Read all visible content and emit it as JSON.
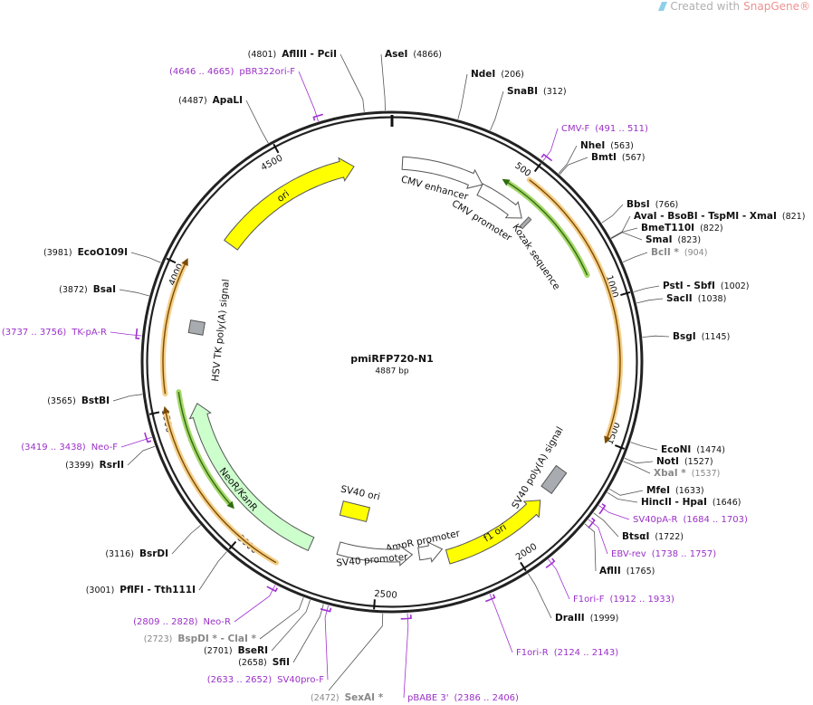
{
  "header": {
    "credit_text": "Created with",
    "brand": "SnapGene®"
  },
  "plasmid": {
    "name": "pmiRFP720-N1",
    "length": {
      "value": 4887,
      "label": "4887 bp"
    }
  },
  "ring_ticks": [
    500,
    1000,
    1500,
    2000,
    2500,
    3000,
    3500,
    4000,
    4500
  ],
  "features": [
    {
      "label": "CMV enhancer"
    },
    {
      "label": "CMV promoter"
    },
    {
      "label": "Kozak sequence"
    },
    {
      "label": "SV40 poly(A) signal"
    },
    {
      "label": "f1 ori"
    },
    {
      "label": "AmpR promoter"
    },
    {
      "label": "SV40 promoter"
    },
    {
      "label": "SV40 ori"
    },
    {
      "label": "NeoR/KanR"
    },
    {
      "label": "HSV TK poly(A) signal"
    },
    {
      "label": "ori"
    }
  ],
  "sites": [
    {
      "name": "AflIII - PciI",
      "position": {
        "value": 4801,
        "label": "(4801)"
      }
    },
    {
      "name": "AseI",
      "position": {
        "value": 4866,
        "label": "(4866)"
      }
    },
    {
      "name": "NdeI",
      "position": {
        "value": 206,
        "label": "(206)"
      }
    },
    {
      "name": "SnaBI",
      "position": {
        "value": 312,
        "label": "(312)"
      }
    },
    {
      "name": "NheI",
      "position": {
        "value": 563,
        "label": "(563)"
      }
    },
    {
      "name": "BmtI",
      "position": {
        "value": 567,
        "label": "(567)"
      }
    },
    {
      "name": "BbsI",
      "position": {
        "value": 766,
        "label": "(766)"
      }
    },
    {
      "name": "AvaI - BsoBI - TspMI - XmaI",
      "position": {
        "value": 821,
        "label": "(821)"
      }
    },
    {
      "name": "BmeT110I",
      "position": {
        "value": 822,
        "label": "(822)"
      }
    },
    {
      "name": "SmaI",
      "position": {
        "value": 823,
        "label": "(823)"
      }
    },
    {
      "name": "BclI *",
      "position": {
        "value": 904,
        "label": "(904)"
      },
      "color": "#888888"
    },
    {
      "name": "PstI - SbfI",
      "position": {
        "value": 1002,
        "label": "(1002)"
      }
    },
    {
      "name": "SacII",
      "position": {
        "value": 1038,
        "label": "(1038)"
      }
    },
    {
      "name": "BsgI",
      "position": {
        "value": 1145,
        "label": "(1145)"
      }
    },
    {
      "name": "EcoNI",
      "position": {
        "value": 1474,
        "label": "(1474)"
      }
    },
    {
      "name": "NotI",
      "position": {
        "value": 1527,
        "label": "(1527)"
      }
    },
    {
      "name": "XbaI *",
      "position": {
        "value": 1537,
        "label": "(1537)"
      },
      "color": "#888888"
    },
    {
      "name": "MfeI",
      "position": {
        "value": 1633,
        "label": "(1633)"
      }
    },
    {
      "name": "HincII - HpaI",
      "position": {
        "value": 1646,
        "label": "(1646)"
      }
    },
    {
      "name": "BtsαI",
      "position": {
        "value": 1722,
        "label": "(1722)"
      }
    },
    {
      "name": "AflII",
      "position": {
        "value": 1765,
        "label": "(1765)"
      }
    },
    {
      "name": "DraIII",
      "position": {
        "value": 1999,
        "label": "(1999)"
      }
    },
    {
      "name": "SexAI *",
      "position": {
        "value": 2472,
        "label": "(2472)"
      },
      "color": "#888888"
    },
    {
      "name": "SfiI",
      "position": {
        "value": 2658,
        "label": "(2658)"
      }
    },
    {
      "name": "BseRI",
      "position": {
        "value": 2701,
        "label": "(2701)"
      }
    },
    {
      "name": "BspDI * - ClaI *",
      "position": {
        "value": 2723,
        "label": "(2723)"
      },
      "color": "#888888"
    },
    {
      "name": "PflFI - Tth111I",
      "position": {
        "value": 3001,
        "label": "(3001)"
      }
    },
    {
      "name": "BsrDI",
      "position": {
        "value": 3116,
        "label": "(3116)"
      }
    },
    {
      "name": "RsrII",
      "position": {
        "value": 3399,
        "label": "(3399)"
      }
    },
    {
      "name": "BstBI",
      "position": {
        "value": 3565,
        "label": "(3565)"
      }
    },
    {
      "name": "BsaI",
      "position": {
        "value": 3872,
        "label": "(3872)"
      }
    },
    {
      "name": "EcoO109I",
      "position": {
        "value": 3981,
        "label": "(3981)"
      }
    },
    {
      "name": "ApaLI",
      "position": {
        "value": 4487,
        "label": "(4487)"
      }
    }
  ],
  "primers": [
    {
      "name": "CMV-F",
      "range": {
        "value": [
          491,
          511
        ],
        "label": "(491 .. 511)"
      }
    },
    {
      "name": "SV40pA-R",
      "range": {
        "value": [
          1684,
          1703
        ],
        "label": "(1684 .. 1703)"
      }
    },
    {
      "name": "EBV-rev",
      "range": {
        "value": [
          1738,
          1757
        ],
        "label": "(1738 .. 1757)"
      }
    },
    {
      "name": "F1ori-F",
      "range": {
        "value": [
          1912,
          1933
        ],
        "label": "(1912 .. 1933)"
      }
    },
    {
      "name": "F1ori-R",
      "range": {
        "value": [
          2124,
          2143
        ],
        "label": "(2124 .. 2143)"
      }
    },
    {
      "name": "pBABE 3'",
      "range": {
        "value": [
          2386,
          2406
        ],
        "label": "(2386 .. 2406)"
      }
    },
    {
      "name": "SV40pro-F",
      "range": {
        "value": [
          2633,
          2652
        ],
        "label": "(2633 .. 2652)"
      }
    },
    {
      "name": "Neo-R",
      "range": {
        "value": [
          2809,
          2828
        ],
        "label": "(2809 .. 2828)"
      }
    },
    {
      "name": "Neo-F",
      "range": {
        "value": [
          3419,
          3438
        ],
        "label": "(3419 .. 3438)"
      }
    },
    {
      "name": "TK-pA-R",
      "range": {
        "value": [
          3737,
          3756
        ],
        "label": "(3737 .. 3756)"
      }
    },
    {
      "name": "pBR322ori-F",
      "range": {
        "value": [
          4646,
          4665
        ],
        "label": "(4646 .. 4665)"
      }
    }
  ]
}
